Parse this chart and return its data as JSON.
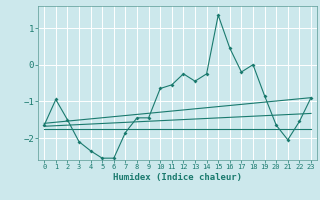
{
  "xlabel": "Humidex (Indice chaleur)",
  "background_color": "#cce8ec",
  "grid_color": "#ffffff",
  "line_color": "#1a7a6e",
  "xlim": [
    -0.5,
    23.5
  ],
  "ylim": [
    -2.6,
    1.6
  ],
  "xticks": [
    0,
    1,
    2,
    3,
    4,
    5,
    6,
    7,
    8,
    9,
    10,
    11,
    12,
    13,
    14,
    15,
    16,
    17,
    18,
    19,
    20,
    21,
    22,
    23
  ],
  "yticks": [
    -2,
    -1,
    0,
    1
  ],
  "series_main": {
    "x": [
      0,
      1,
      2,
      3,
      4,
      5,
      6,
      7,
      8,
      9,
      10,
      11,
      12,
      13,
      14,
      15,
      16,
      17,
      18,
      19,
      20,
      21,
      22,
      23
    ],
    "y": [
      -1.65,
      -0.95,
      -1.5,
      -2.1,
      -2.35,
      -2.55,
      -2.55,
      -1.85,
      -1.45,
      -1.45,
      -0.65,
      -0.55,
      -0.25,
      -0.45,
      -0.25,
      1.35,
      0.45,
      -0.2,
      0.0,
      -0.85,
      -1.65,
      -2.05,
      -1.55,
      -0.9
    ]
  },
  "series_upper": {
    "x": [
      0,
      23
    ],
    "y": [
      -1.6,
      -0.9
    ]
  },
  "series_lower": {
    "x": [
      0,
      23
    ],
    "y": [
      -1.75,
      -1.75
    ]
  },
  "series_mid": {
    "x": [
      0,
      23
    ],
    "y": [
      -1.68,
      -1.33
    ]
  }
}
